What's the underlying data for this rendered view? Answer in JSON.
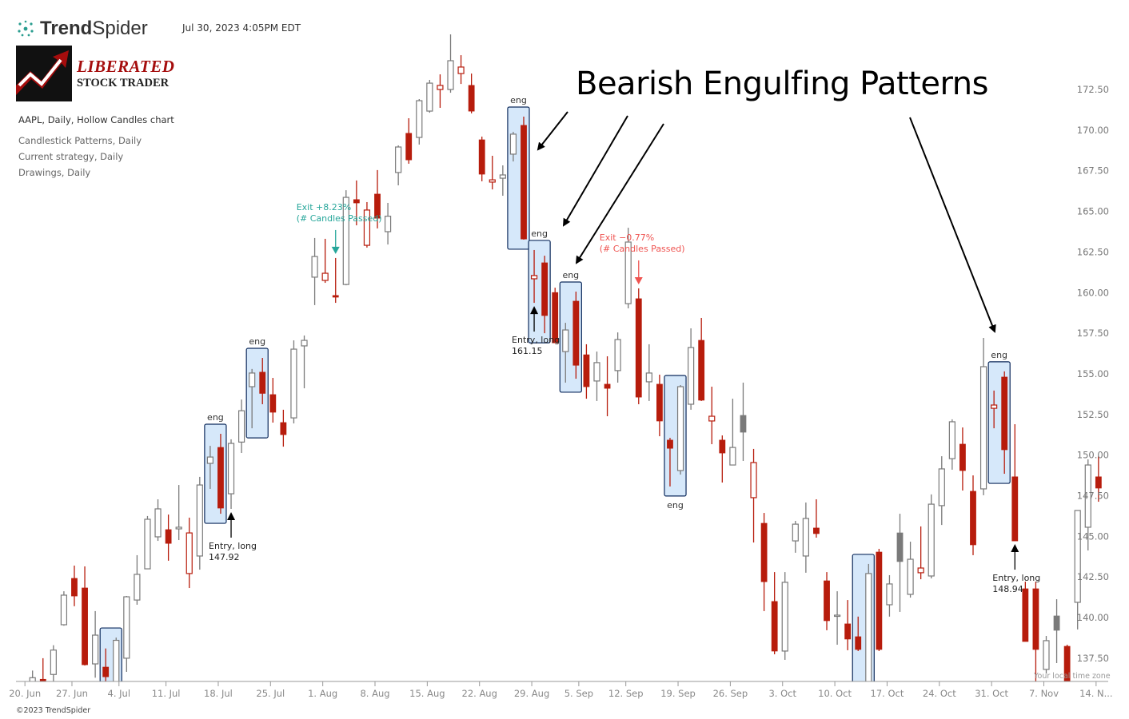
{
  "header": {
    "brand": {
      "part1": "Trend",
      "part2": "Spider"
    },
    "timestamp": "Jul 30, 2023 4:05PM EDT",
    "logo": {
      "line1": "LIBERATED",
      "line2": "STOCK TRADER"
    },
    "legend": {
      "symbol_line": "AAPL, Daily, Hollow Candles chart",
      "layers": [
        "Candlestick Patterns, Daily",
        "Current strategy, Daily",
        "Drawings, Daily"
      ]
    }
  },
  "overlay_title": "Bearish Engulfing Patterns",
  "footer": {
    "copyright": "©2023 TrendSpider",
    "timezone": "Your local time zone"
  },
  "colors": {
    "down": "#b71c0c",
    "up": "#7a7a7a",
    "pattern_fill": "#d6e8fa",
    "pattern_border": "#0d2a5c",
    "exit_profit": "#26a69a",
    "exit_loss": "#ef5350"
  },
  "chart_data": {
    "type": "candlestick",
    "style": "hollow candles",
    "symbol": "AAPL",
    "interval": "Daily",
    "ylim": [
      136.1,
      176.5
    ],
    "y_ticks": [
      "172.50",
      "170.00",
      "167.50",
      "165.00",
      "162.50",
      "160.00",
      "157.50",
      "155.00",
      "152.50",
      "150.00",
      "147.50",
      "145.00",
      "142.50",
      "140.00",
      "137.50"
    ],
    "x_ticks": [
      "20. Jun",
      "27. Jun",
      "4. Jul",
      "11. Jul",
      "18. Jul",
      "25. Jul",
      "1. Aug",
      "8. Aug",
      "15. Aug",
      "22. Aug",
      "29. Aug",
      "5. Sep",
      "12. Sep",
      "19. Sep",
      "26. Sep",
      "3. Oct",
      "10. Oct",
      "17. Oct",
      "24. Oct",
      "31. Oct",
      "7. Nov",
      "14. N..."
    ],
    "candle_fields": [
      "date",
      "open",
      "high",
      "low",
      "close",
      "color"
    ],
    "candles": [
      [
        "21 Jun",
        135.5,
        136.74,
        135.0,
        136.3,
        "gray"
      ],
      [
        "22 Jun",
        136.2,
        137.5,
        135.2,
        135.6,
        "red"
      ],
      [
        "23 Jun",
        136.5,
        138.3,
        136.0,
        138.0,
        "gray"
      ],
      [
        "24 Jun",
        139.56,
        141.62,
        139.5,
        141.38,
        "gray"
      ],
      [
        "27 Jun",
        142.41,
        143.2,
        140.7,
        141.33,
        "red"
      ],
      [
        "28 Jun",
        141.82,
        143.15,
        137.05,
        137.1,
        "red"
      ],
      [
        "29 Jun",
        137.15,
        140.4,
        136.3,
        138.92,
        "gray"
      ],
      [
        "30 Jun",
        136.95,
        138.1,
        135.8,
        136.36,
        "red"
      ],
      [
        "1 Jul",
        135.9,
        138.77,
        135.6,
        138.6,
        "gray"
      ],
      [
        "5 Jul",
        137.5,
        141.33,
        136.66,
        141.28,
        "gray"
      ],
      [
        "6 Jul",
        141.08,
        143.84,
        140.79,
        142.66,
        "gray"
      ],
      [
        "7 Jul",
        143.0,
        146.25,
        143.0,
        146.05,
        "gray"
      ],
      [
        "8 Jul",
        144.97,
        147.28,
        144.72,
        146.69,
        "gray"
      ],
      [
        "11 Jul",
        145.41,
        146.34,
        143.5,
        144.57,
        "red"
      ],
      [
        "12 Jul",
        145.46,
        148.16,
        144.77,
        145.56,
        "gray"
      ],
      [
        "13 Jul",
        142.71,
        146.15,
        141.82,
        145.21,
        "red"
      ],
      [
        "14 Jul",
        143.79,
        148.66,
        142.95,
        148.16,
        "gray"
      ],
      [
        "15 Jul",
        149.49,
        150.57,
        147.92,
        149.88,
        "gray"
      ],
      [
        "18 Jul",
        150.47,
        151.31,
        146.39,
        146.74,
        "red"
      ],
      [
        "19 Jul",
        147.62,
        150.97,
        146.69,
        150.72,
        "gray"
      ],
      [
        "20 Jul",
        150.8,
        153.42,
        150.13,
        152.73,
        "gray"
      ],
      [
        "21 Jul",
        154.21,
        155.3,
        151.65,
        155.05,
        "gray"
      ],
      [
        "22 Jul",
        155.1,
        155.98,
        153.13,
        153.8,
        "red"
      ],
      [
        "25 Jul",
        153.72,
        154.75,
        152.0,
        152.64,
        "red"
      ],
      [
        "26 Jul",
        152.0,
        152.79,
        150.52,
        151.26,
        "red"
      ],
      [
        "27 Jul",
        152.29,
        157.06,
        151.95,
        156.52,
        "gray"
      ],
      [
        "28 Jul",
        156.72,
        157.36,
        154.11,
        157.06,
        "gray"
      ],
      [
        "29 Jul",
        160.95,
        163.36,
        159.23,
        162.22,
        "gray"
      ],
      [
        "1 Aug",
        160.75,
        163.31,
        160.6,
        161.19,
        "red"
      ],
      [
        "2 Aug",
        159.82,
        162.13,
        159.37,
        159.72,
        "red"
      ],
      [
        "3 Aug",
        160.5,
        166.3,
        160.45,
        165.86,
        "gray"
      ],
      [
        "4 Aug",
        165.72,
        166.9,
        164.14,
        165.52,
        "red"
      ],
      [
        "5 Aug",
        162.91,
        165.57,
        162.77,
        165.08,
        "red"
      ],
      [
        "8 Aug",
        166.06,
        167.54,
        163.95,
        164.58,
        "red"
      ],
      [
        "9 Aug",
        163.75,
        165.52,
        162.96,
        164.7,
        "gray"
      ],
      [
        "10 Aug",
        167.39,
        169.06,
        166.6,
        168.96,
        "gray"
      ],
      [
        "11 Aug",
        169.8,
        170.73,
        167.93,
        168.17,
        "red"
      ],
      [
        "12 Aug",
        169.55,
        171.91,
        169.11,
        171.81,
        "gray"
      ],
      [
        "15 Aug",
        171.17,
        173.09,
        171.07,
        172.89,
        "gray"
      ],
      [
        "16 Aug",
        172.5,
        173.43,
        171.37,
        172.75,
        "red"
      ],
      [
        "17 Aug",
        172.5,
        175.89,
        172.3,
        174.27,
        "gray"
      ],
      [
        "18 Aug",
        173.48,
        174.61,
        172.84,
        173.88,
        "red"
      ],
      [
        "19 Aug",
        172.75,
        173.48,
        171.03,
        171.17,
        "red"
      ],
      [
        "22 Aug",
        169.4,
        169.6,
        166.85,
        167.29,
        "red"
      ],
      [
        "23 Aug",
        166.8,
        168.42,
        166.35,
        166.94,
        "red"
      ],
      [
        "24 Aug",
        167.04,
        167.83,
        165.96,
        167.24,
        "gray"
      ],
      [
        "25 Aug",
        168.52,
        169.89,
        168.07,
        169.75,
        "gray"
      ],
      [
        "26 Aug",
        170.29,
        170.83,
        163.26,
        163.3,
        "red"
      ],
      [
        "29 Aug",
        160.85,
        162.62,
        159.37,
        161.05,
        "red"
      ],
      [
        "30 Aug",
        161.83,
        162.27,
        157.5,
        158.59,
        "red"
      ],
      [
        "31 Aug",
        160.0,
        160.3,
        156.91,
        156.91,
        "red"
      ],
      [
        "1 Sep",
        156.37,
        158.14,
        154.46,
        157.7,
        "gray"
      ],
      [
        "2 Sep",
        159.47,
        160.06,
        154.7,
        155.53,
        "red"
      ],
      [
        "6 Sep",
        156.17,
        156.82,
        153.47,
        154.21,
        "red"
      ],
      [
        "7 Sep",
        154.56,
        156.37,
        153.33,
        155.69,
        "gray"
      ],
      [
        "8 Sep",
        154.36,
        156.08,
        152.39,
        154.11,
        "red"
      ],
      [
        "9 Sep",
        155.2,
        157.55,
        154.46,
        157.11,
        "gray"
      ],
      [
        "12 Sep",
        159.32,
        163.99,
        159.03,
        163.11,
        "gray"
      ],
      [
        "13 Sep",
        159.62,
        160.26,
        153.13,
        153.57,
        "red"
      ],
      [
        "14 Sep",
        154.51,
        156.82,
        153.33,
        155.05,
        "gray"
      ],
      [
        "15 Sep",
        154.36,
        154.95,
        151.16,
        152.1,
        "red"
      ],
      [
        "16 Sep",
        150.92,
        151.06,
        148.07,
        150.42,
        "red"
      ],
      [
        "19 Sep",
        149.05,
        154.31,
        148.8,
        154.21,
        "gray"
      ],
      [
        "20 Sep",
        153.13,
        157.8,
        152.79,
        156.62,
        "gray"
      ],
      [
        "21 Sep",
        157.06,
        158.44,
        153.33,
        153.38,
        "red"
      ],
      [
        "22 Sep",
        152.1,
        154.21,
        150.67,
        152.39,
        "red"
      ],
      [
        "23 Sep",
        150.92,
        151.21,
        148.31,
        150.13,
        "red"
      ],
      [
        "26 Sep",
        149.39,
        153.47,
        149.39,
        150.47,
        "gray"
      ],
      [
        "27 Sep",
        152.44,
        154.46,
        149.64,
        151.41,
        "gray"
      ],
      [
        "28 Sep",
        147.38,
        150.38,
        144.62,
        149.54,
        "red"
      ],
      [
        "29 Sep",
        145.8,
        146.44,
        140.4,
        142.21,
        "red"
      ],
      [
        "30 Sep",
        140.99,
        142.8,
        137.74,
        137.94,
        "red"
      ],
      [
        "3 Oct",
        137.94,
        142.8,
        137.4,
        142.17,
        "gray"
      ],
      [
        "4 Oct",
        144.72,
        145.95,
        143.99,
        145.75,
        "gray"
      ],
      [
        "5 Oct",
        143.79,
        147.08,
        142.76,
        146.1,
        "gray"
      ],
      [
        "6 Oct",
        145.51,
        147.28,
        144.92,
        145.17,
        "red"
      ],
      [
        "7 Oct",
        142.26,
        142.8,
        139.22,
        139.81,
        "red"
      ],
      [
        "10 Oct",
        140.1,
        141.62,
        138.33,
        140.15,
        "gray"
      ],
      [
        "11 Oct",
        139.61,
        141.08,
        137.99,
        138.68,
        "red"
      ],
      [
        "12 Oct",
        138.82,
        140.06,
        137.94,
        138.04,
        "red"
      ],
      [
        "13 Oct",
        135.8,
        143.3,
        135.5,
        142.71,
        "gray"
      ],
      [
        "14 Oct",
        144.03,
        144.23,
        137.94,
        138.04,
        "red"
      ],
      [
        "17 Oct",
        140.79,
        142.61,
        140.06,
        142.07,
        "gray"
      ],
      [
        "18 Oct",
        145.21,
        146.39,
        140.35,
        143.45,
        "gray"
      ],
      [
        "19 Oct",
        141.43,
        144.67,
        141.23,
        143.59,
        "gray"
      ],
      [
        "20 Oct",
        142.76,
        145.61,
        142.36,
        143.05,
        "red"
      ],
      [
        "21 Oct",
        142.56,
        147.58,
        142.41,
        146.98,
        "gray"
      ],
      [
        "24 Oct",
        146.89,
        149.93,
        145.7,
        149.15,
        "gray"
      ],
      [
        "25 Oct",
        149.78,
        152.2,
        149.1,
        152.05,
        "gray"
      ],
      [
        "26 Oct",
        150.67,
        151.7,
        147.82,
        149.05,
        "red"
      ],
      [
        "27 Oct",
        147.77,
        148.75,
        143.84,
        144.48,
        "red"
      ],
      [
        "28 Oct",
        147.92,
        157.21,
        147.53,
        155.44,
        "gray"
      ],
      [
        "31 Oct",
        152.88,
        153.97,
        151.65,
        153.08,
        "red"
      ],
      [
        "1 Nov",
        154.8,
        155.15,
        148.85,
        150.33,
        "red"
      ],
      [
        "2 Nov",
        148.66,
        151.9,
        144.72,
        144.72,
        "red"
      ],
      [
        "3 Nov",
        141.77,
        142.21,
        138.53,
        138.53,
        "red"
      ],
      [
        "4 Nov",
        141.77,
        142.21,
        135.5,
        138.04,
        "red"
      ],
      [
        "7 Nov",
        136.81,
        138.87,
        136.56,
        138.58,
        "gray"
      ],
      [
        "8 Nov",
        140.1,
        141.13,
        137.2,
        139.22,
        "gray"
      ],
      [
        "9 Nov",
        138.23,
        138.33,
        135.5,
        135.6,
        "red"
      ],
      [
        "10 Nov",
        140.94,
        146.59,
        139.27,
        146.59,
        "gray"
      ],
      [
        "11 Nov",
        145.56,
        149.74,
        144.13,
        149.39,
        "gray"
      ],
      [
        "14 Nov",
        148.66,
        149.93,
        147.13,
        147.97,
        "red"
      ]
    ],
    "patterns": [
      {
        "from": "30 Jun",
        "to": "1 Jul",
        "label": "",
        "label_pos": "above"
      },
      {
        "from": "15 Jul",
        "to": "18 Jul",
        "label": "eng",
        "label_pos": "above"
      },
      {
        "from": "21 Jul",
        "to": "22 Jul",
        "label": "eng",
        "label_pos": "above"
      },
      {
        "from": "25 Aug",
        "to": "26 Aug",
        "label": "eng",
        "label_pos": "above"
      },
      {
        "from": "29 Aug",
        "to": "30 Aug",
        "label": "eng",
        "label_pos": "above"
      },
      {
        "from": "1 Sep",
        "to": "2 Sep",
        "label": "eng",
        "label_pos": "above"
      },
      {
        "from": "16 Sep",
        "to": "19 Sep",
        "label": "eng",
        "label_pos": "below"
      },
      {
        "from": "12 Oct",
        "to": "13 Oct",
        "label": "",
        "label_pos": "above"
      },
      {
        "from": "31 Oct",
        "to": "1 Nov",
        "label": "eng",
        "label_pos": "above"
      }
    ],
    "entries": [
      {
        "at": "19 Jul",
        "label": "Entry, long",
        "price": "147.92"
      },
      {
        "at": "29 Aug",
        "label": "Entry, long",
        "price": "161.15"
      },
      {
        "at": "2 Nov",
        "label": "Entry, long",
        "price": "148.94"
      }
    ],
    "exits": [
      {
        "at": "2 Aug",
        "label": "Exit +8.23%",
        "sub": "(# Candles Passed)",
        "kind": "profit"
      },
      {
        "at": "13 Sep",
        "label": "Exit −0.77%",
        "sub": "(# Candles Passed)",
        "kind": "loss"
      }
    ]
  }
}
